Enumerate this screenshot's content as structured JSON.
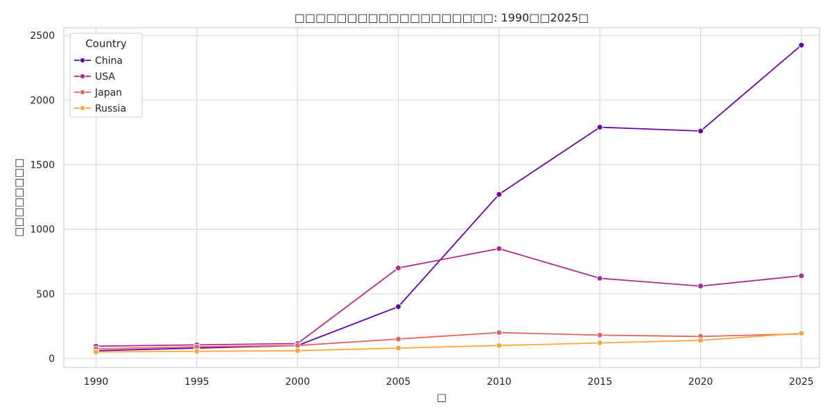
{
  "chart_data": {
    "type": "line",
    "title": "□□□□□□□□□□□□□□□□□□□: 1990□□2025□",
    "xlabel": "□",
    "ylabel": "□□□□□□□□",
    "x": [
      1990,
      1995,
      2000,
      2005,
      2010,
      2015,
      2020,
      2025
    ],
    "xlim": [
      1988.4,
      2025.9
    ],
    "ylim": [
      -70,
      2560
    ],
    "x_ticks": [
      1990,
      1995,
      2000,
      2005,
      2010,
      2015,
      2020,
      2025
    ],
    "y_ticks": [
      0,
      500,
      1000,
      1500,
      2000,
      2500
    ],
    "grid": true,
    "legend": {
      "title": "Country",
      "placement": "top-left"
    },
    "series": [
      {
        "name": "China",
        "color": "#6a00a8",
        "values": [
          60,
          80,
          100,
          400,
          1270,
          1790,
          1760,
          2425
        ]
      },
      {
        "name": "USA",
        "color": "#b12a90",
        "values": [
          95,
          105,
          115,
          700,
          850,
          620,
          560,
          640
        ]
      },
      {
        "name": "Japan",
        "color": "#e16462",
        "values": [
          75,
          90,
          100,
          150,
          200,
          180,
          170,
          190
        ]
      },
      {
        "name": "Russia",
        "color": "#fca636",
        "values": [
          50,
          55,
          60,
          80,
          100,
          120,
          140,
          195
        ]
      }
    ]
  }
}
